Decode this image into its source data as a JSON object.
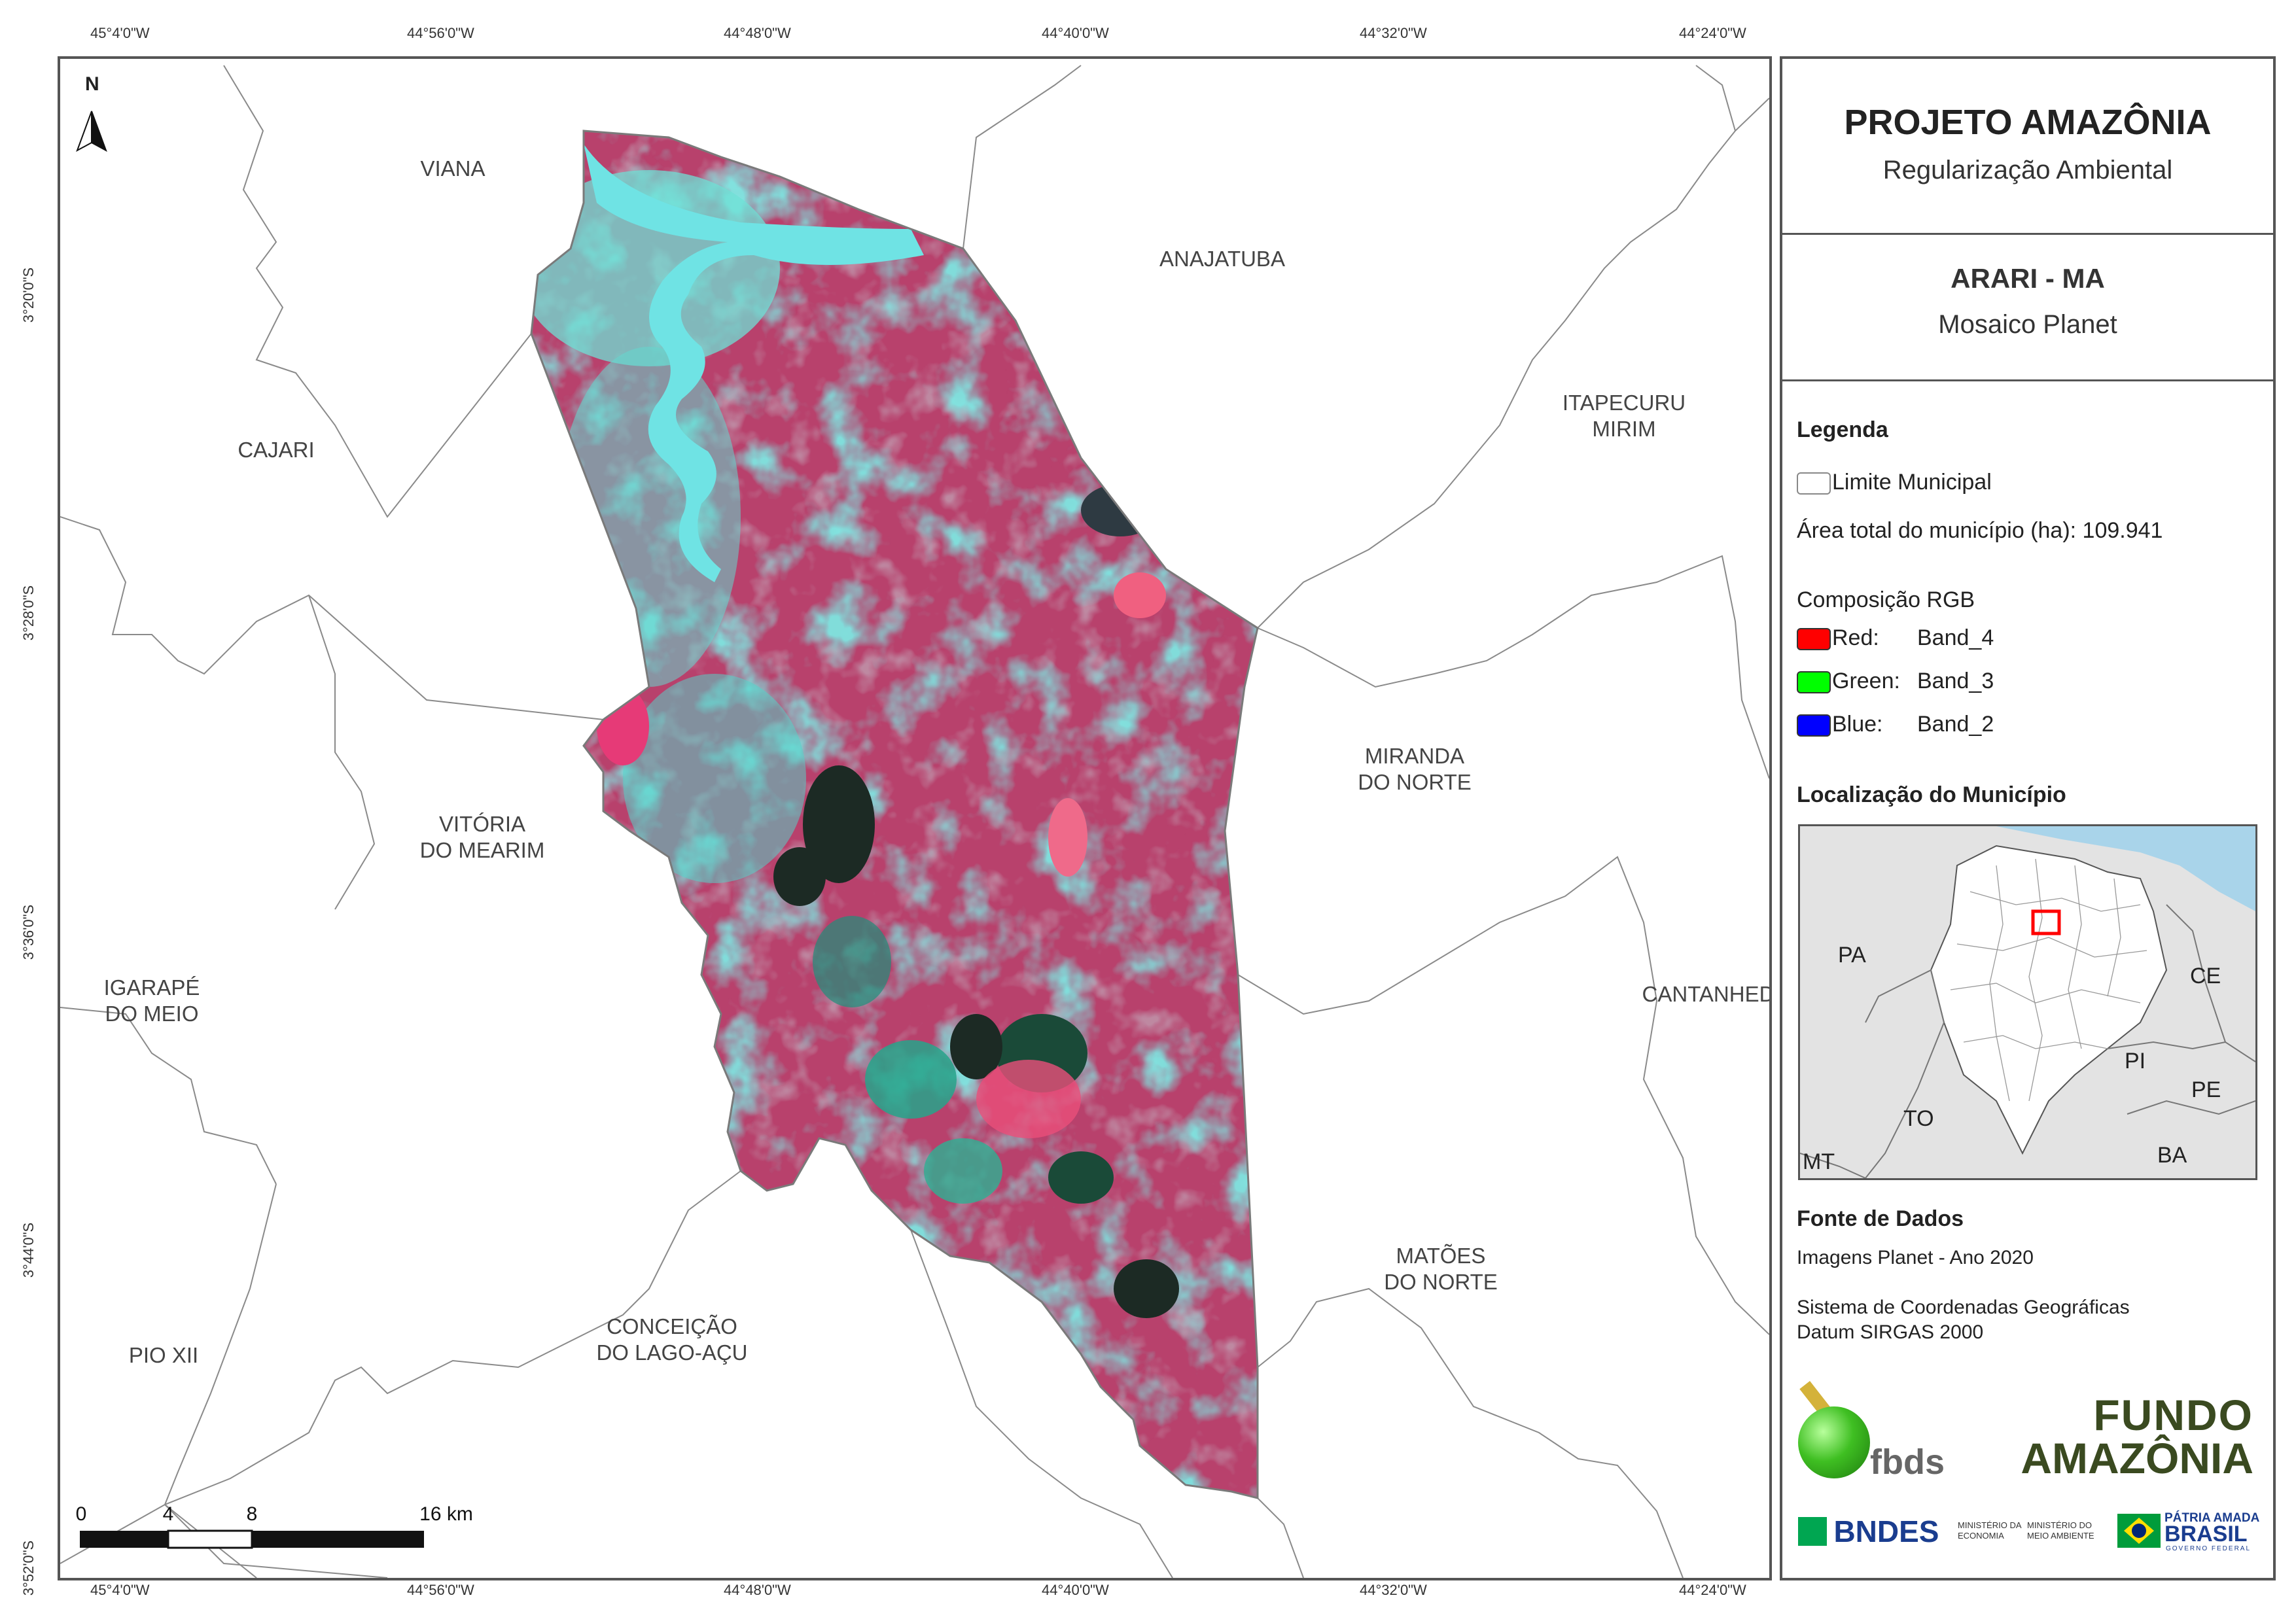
{
  "coordinates": {
    "top": [
      "45°4'0\"W",
      "44°56'0\"W",
      "44°48'0\"W",
      "44°40'0\"W",
      "44°32'0\"W",
      "44°24'0\"W"
    ],
    "bottom": [
      "45°4'0\"W",
      "44°56'0\"W",
      "44°48'0\"W",
      "44°40'0\"W",
      "44°32'0\"W",
      "44°24'0\"W"
    ],
    "left": [
      "3°20'0\"S",
      "3°28'0\"S",
      "3°36'0\"S",
      "3°44'0\"S",
      "3°52'0\"S"
    ]
  },
  "north_arrow": {
    "label": "N"
  },
  "municipalities": [
    "VIANA",
    "ANAJATUBA",
    "ITAPECURU\nMIRIM",
    "CAJARI",
    "MIRANDA\nDO NORTE",
    "VITÓRIA\nDO MEARIM",
    "IGARAPÉ\nDO MEIO",
    "CANTANHEDE",
    "MATÕES\nDO NORTE",
    "CONCEIÇÃO\nDO LAGO-AÇU",
    "PIO XII"
  ],
  "scale_bar": {
    "labels": [
      "0",
      "4",
      "8",
      "16 km"
    ]
  },
  "panel": {
    "title": "PROJETO AMAZÔNIA",
    "subtitle": "Regularização Ambiental",
    "municipality": "ARARI - MA",
    "mosaic": "Mosaico Planet",
    "legend_title": "Legenda",
    "legend_limit": "Limite Municipal",
    "area_text": "Área total do município (ha): 109.941",
    "rgb_title": "Composição RGB",
    "bands": [
      {
        "channel": "Red:",
        "band": "Band_4",
        "color": "#ff0000"
      },
      {
        "channel": "Green:",
        "band": "Band_3",
        "color": "#00ff00"
      },
      {
        "channel": "Blue:",
        "band": "Band_2",
        "color": "#0000ff"
      }
    ],
    "location_title": "Localização do Município",
    "inset_labels": [
      "PA",
      "CE",
      "PI",
      "PE",
      "TO",
      "BA",
      "MT"
    ],
    "sources_title": "Fonte de Dados",
    "source_images": "Imagens Planet - Ano 2020",
    "crs_line1": "Sistema de Coordenadas Geográficas",
    "crs_line2": "Datum SIRGAS 2000",
    "logos": {
      "fbds": "fbds",
      "fundo_line1": "FUNDO",
      "fundo_line2": "AMAZÔNIA",
      "bndes": "BNDES",
      "ministerio_economia": "MINISTÉRIO DA\nECONOMIA",
      "ministerio_ambiente": "MINISTÉRIO DO\nMEIO AMBIENTE",
      "patria": "PÁTRIA AMADA",
      "brasil": "BRASIL",
      "governo": "GOVERNO FEDERAL"
    }
  },
  "colors": {
    "magenta": "#c23e68",
    "cyan": "#5fe3d9",
    "teal": "#2aa089",
    "dark": "#1c2a24",
    "border": "#555555"
  }
}
